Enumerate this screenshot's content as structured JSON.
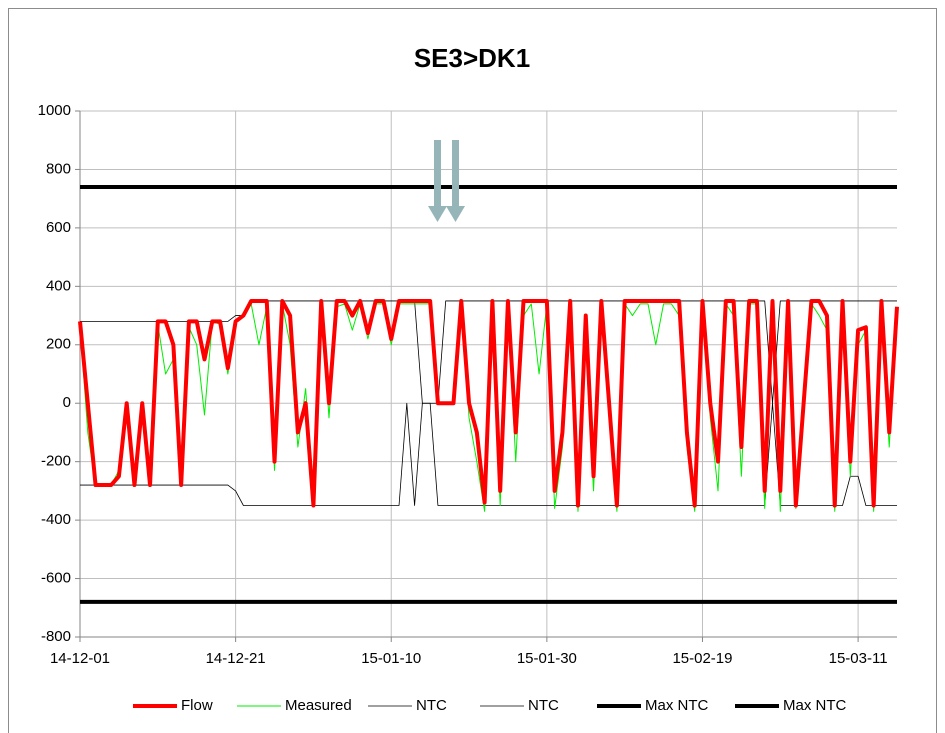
{
  "chart_data": {
    "type": "line",
    "title": "SE3>DK1",
    "x": [
      "14-12-01",
      "14-12-02",
      "14-12-03",
      "14-12-04",
      "14-12-05",
      "14-12-06",
      "14-12-07",
      "14-12-08",
      "14-12-09",
      "14-12-10",
      "14-12-11",
      "14-12-12",
      "14-12-13",
      "14-12-14",
      "14-12-15",
      "14-12-16",
      "14-12-17",
      "14-12-18",
      "14-12-19",
      "14-12-20",
      "14-12-21",
      "14-12-22",
      "14-12-23",
      "14-12-24",
      "14-12-25",
      "14-12-26",
      "14-12-27",
      "14-12-28",
      "14-12-29",
      "14-12-30",
      "14-12-31",
      "15-01-01",
      "15-01-02",
      "15-01-03",
      "15-01-04",
      "15-01-05",
      "15-01-06",
      "15-01-07",
      "15-01-08",
      "15-01-09",
      "15-01-10",
      "15-01-11",
      "15-01-12",
      "15-01-13",
      "15-01-14",
      "15-01-15",
      "15-01-16",
      "15-01-17",
      "15-01-18",
      "15-01-19",
      "15-01-20",
      "15-01-21",
      "15-01-22",
      "15-01-23",
      "15-01-24",
      "15-01-25",
      "15-01-26",
      "15-01-27",
      "15-01-28",
      "15-01-29",
      "15-01-30",
      "15-01-31",
      "15-02-01",
      "15-02-02",
      "15-02-03",
      "15-02-04",
      "15-02-05",
      "15-02-06",
      "15-02-07",
      "15-02-08",
      "15-02-09",
      "15-02-10",
      "15-02-11",
      "15-02-12",
      "15-02-13",
      "15-02-14",
      "15-02-15",
      "15-02-16",
      "15-02-17",
      "15-02-18",
      "15-02-19",
      "15-02-20",
      "15-02-21",
      "15-02-22",
      "15-02-23",
      "15-02-24",
      "15-02-25",
      "15-02-26",
      "15-02-27",
      "15-02-28",
      "15-03-01",
      "15-03-02",
      "15-03-03",
      "15-03-04",
      "15-03-05",
      "15-03-06",
      "15-03-07",
      "15-03-08",
      "15-03-09",
      "15-03-10",
      "15-03-11",
      "15-03-12",
      "15-03-13",
      "15-03-14",
      "15-03-15",
      "15-03-16"
    ],
    "series": [
      {
        "name": "Flow",
        "color": "#ff0000",
        "width": 4,
        "values": [
          280,
          0,
          -280,
          -280,
          -280,
          -250,
          0,
          -280,
          0,
          -280,
          280,
          280,
          200,
          -280,
          280,
          280,
          150,
          280,
          280,
          120,
          280,
          300,
          350,
          350,
          350,
          -200,
          350,
          300,
          -100,
          0,
          -350,
          350,
          0,
          350,
          350,
          300,
          350,
          240,
          350,
          350,
          220,
          350,
          350,
          350,
          350,
          350,
          0,
          0,
          0,
          350,
          0,
          -100,
          -340,
          350,
          -300,
          350,
          -100,
          350,
          350,
          350,
          350,
          -300,
          -100,
          350,
          -350,
          300,
          -250,
          350,
          0,
          -350,
          350,
          350,
          350,
          350,
          350,
          350,
          350,
          350,
          -100,
          -350,
          350,
          0,
          -200,
          350,
          350,
          -150,
          350,
          350,
          -300,
          350,
          -300,
          350,
          -350,
          0,
          350,
          350,
          300,
          -350,
          350,
          -200,
          250,
          260,
          -350,
          350,
          -100,
          330
        ]
      },
      {
        "name": "Measured",
        "color": "#00ee00",
        "width": 1,
        "values": [
          270,
          -100,
          -285,
          -285,
          -280,
          -230,
          -50,
          -285,
          -30,
          -285,
          270,
          100,
          150,
          -285,
          260,
          200,
          -40,
          280,
          270,
          100,
          280,
          300,
          340,
          200,
          330,
          -230,
          340,
          200,
          -150,
          50,
          -340,
          340,
          -50,
          330,
          340,
          250,
          340,
          220,
          340,
          340,
          200,
          340,
          340,
          340,
          340,
          340,
          0,
          0,
          0,
          340,
          -50,
          -200,
          -370,
          300,
          -350,
          340,
          -200,
          300,
          340,
          100,
          340,
          -360,
          -150,
          340,
          -370,
          200,
          -300,
          340,
          -50,
          -370,
          340,
          300,
          340,
          340,
          200,
          340,
          340,
          300,
          -150,
          -370,
          340,
          -50,
          -300,
          340,
          300,
          -250,
          340,
          340,
          -360,
          340,
          -370,
          340,
          -360,
          -50,
          340,
          300,
          250,
          -370,
          340,
          -250,
          200,
          250,
          -370,
          340,
          -150,
          320
        ]
      },
      {
        "name": "NTC",
        "color": "#000000",
        "width": 0.8,
        "values": [
          280,
          280,
          280,
          280,
          280,
          280,
          280,
          280,
          280,
          280,
          280,
          280,
          280,
          280,
          280,
          280,
          280,
          280,
          280,
          280,
          300,
          300,
          350,
          350,
          350,
          350,
          350,
          350,
          350,
          350,
          350,
          350,
          350,
          350,
          350,
          350,
          350,
          350,
          350,
          350,
          350,
          350,
          350,
          350,
          0,
          0,
          0,
          350,
          350,
          350,
          350,
          350,
          350,
          350,
          350,
          350,
          350,
          350,
          350,
          350,
          350,
          350,
          350,
          350,
          350,
          350,
          350,
          350,
          350,
          350,
          350,
          350,
          350,
          350,
          350,
          350,
          350,
          350,
          350,
          350,
          350,
          350,
          350,
          350,
          350,
          350,
          350,
          350,
          350,
          0,
          350,
          350,
          350,
          350,
          350,
          350,
          350,
          350,
          350,
          350,
          350,
          350,
          350,
          350,
          350,
          350
        ]
      },
      {
        "name": "NTC",
        "color": "#000000",
        "width": 0.8,
        "values": [
          -280,
          -280,
          -280,
          -280,
          -280,
          -280,
          -280,
          -280,
          -280,
          -280,
          -280,
          -280,
          -280,
          -280,
          -280,
          -280,
          -280,
          -280,
          -280,
          -280,
          -300,
          -350,
          -350,
          -350,
          -350,
          -350,
          -350,
          -350,
          -350,
          -350,
          -350,
          -350,
          -350,
          -350,
          -350,
          -350,
          -350,
          -350,
          -350,
          -350,
          -350,
          -350,
          0,
          -350,
          0,
          0,
          -350,
          -350,
          -350,
          -350,
          -350,
          -350,
          -350,
          -350,
          -350,
          -350,
          -350,
          -350,
          -350,
          -350,
          -350,
          -350,
          -350,
          -350,
          -350,
          -350,
          -350,
          -350,
          -350,
          -350,
          -350,
          -350,
          -350,
          -350,
          -350,
          -350,
          -350,
          -350,
          -350,
          -350,
          -350,
          -350,
          -350,
          -350,
          -350,
          -350,
          -350,
          -350,
          -350,
          0,
          -350,
          -350,
          -350,
          -350,
          -350,
          -350,
          -350,
          -350,
          -350,
          -250,
          -250,
          -350,
          -350,
          -350,
          -350,
          -350
        ]
      },
      {
        "name": "Max NTC",
        "color": "#000000",
        "width": 4,
        "values": [
          740,
          740,
          740,
          740,
          740,
          740,
          740,
          740,
          740,
          740,
          740,
          740,
          740,
          740,
          740,
          740,
          740,
          740,
          740,
          740,
          740,
          740,
          740,
          740,
          740,
          740,
          740,
          740,
          740,
          740,
          740,
          740,
          740,
          740,
          740,
          740,
          740,
          740,
          740,
          740,
          740,
          740,
          740,
          740,
          740,
          740,
          740,
          740,
          740,
          740,
          740,
          740,
          740,
          740,
          740,
          740,
          740,
          740,
          740,
          740,
          740,
          740,
          740,
          740,
          740,
          740,
          740,
          740,
          740,
          740,
          740,
          740,
          740,
          740,
          740,
          740,
          740,
          740,
          740,
          740,
          740,
          740,
          740,
          740,
          740,
          740,
          740,
          740,
          740,
          740,
          740,
          740,
          740,
          740,
          740,
          740,
          740,
          740,
          740,
          740,
          740,
          740,
          740,
          740,
          740,
          740
        ]
      },
      {
        "name": "Max NTC",
        "color": "#000000",
        "width": 4,
        "values": [
          -680,
          -680,
          -680,
          -680,
          -680,
          -680,
          -680,
          -680,
          -680,
          -680,
          -680,
          -680,
          -680,
          -680,
          -680,
          -680,
          -680,
          -680,
          -680,
          -680,
          -680,
          -680,
          -680,
          -680,
          -680,
          -680,
          -680,
          -680,
          -680,
          -680,
          -680,
          -680,
          -680,
          -680,
          -680,
          -680,
          -680,
          -680,
          -680,
          -680,
          -680,
          -680,
          -680,
          -680,
          -680,
          -680,
          -680,
          -680,
          -680,
          -680,
          -680,
          -680,
          -680,
          -680,
          -680,
          -680,
          -680,
          -680,
          -680,
          -680,
          -680,
          -680,
          -680,
          -680,
          -680,
          -680,
          -680,
          -680,
          -680,
          -680,
          -680,
          -680,
          -680,
          -680,
          -680,
          -680,
          -680,
          -680,
          -680,
          -680,
          -680,
          -680,
          -680,
          -680,
          -680,
          -680,
          -680,
          -680,
          -680,
          -680,
          -680,
          -680,
          -680,
          -680,
          -680,
          -680,
          -680,
          -680,
          -680,
          -680,
          -680,
          -680,
          -680,
          -680,
          -680,
          -680
        ]
      }
    ],
    "xlim": [
      "14-12-01",
      "15-03-16"
    ],
    "xticks": [
      "14-12-01",
      "14-12-21",
      "15-01-10",
      "15-01-30",
      "15-02-19",
      "15-03-11"
    ],
    "ylim": [
      -800,
      1000
    ],
    "yticks": [
      -800,
      -600,
      -400,
      -200,
      0,
      200,
      400,
      600,
      800,
      1000
    ],
    "grid": true,
    "legend": "bottom"
  }
}
